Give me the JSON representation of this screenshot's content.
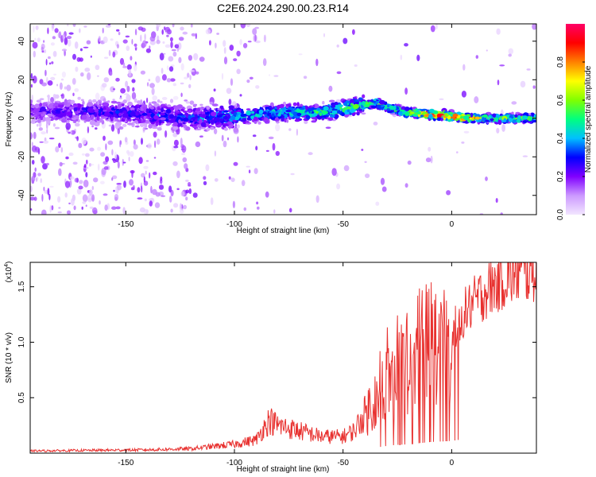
{
  "figure": {
    "title": "C2E6.2024.290.00.23.R14"
  },
  "chart_data": [
    {
      "type": "heatmap",
      "xlabel": "Height of straight line (km)",
      "ylabel": "Frequency (Hz)",
      "xlim": [
        -194,
        39
      ],
      "ylim": [
        -50,
        49
      ],
      "xticks": [
        -150,
        -100,
        -50,
        0
      ],
      "yticks": [
        -40,
        -20,
        0,
        20,
        40
      ],
      "colorbar": {
        "label": "Normalized spectral amplitude",
        "range": [
          0,
          1
        ],
        "ticks": [
          "0.0",
          "0.2",
          "0.4",
          "0.6",
          "0.8"
        ],
        "colors": [
          "#f2e6ff",
          "#cc99ff",
          "#8000ff",
          "#0000ff",
          "#00c0ff",
          "#00ff80",
          "#80ff00",
          "#ffff00",
          "#ff8000",
          "#ff0000",
          "#ff0066"
        ]
      },
      "ridge": {
        "x": [
          -194,
          -150,
          -120,
          -100,
          -80,
          -60,
          -45,
          -35,
          -28,
          -20,
          -10,
          0,
          10,
          20,
          30,
          39
        ],
        "frequency": [
          4,
          3,
          0,
          1,
          3,
          3,
          6,
          8,
          5,
          3,
          2,
          1,
          0,
          0,
          0,
          0
        ],
        "amplitude": [
          0.25,
          0.3,
          0.35,
          0.45,
          0.5,
          0.55,
          0.6,
          0.65,
          0.55,
          0.75,
          0.9,
          0.95,
          0.8,
          0.6,
          0.6,
          0.55
        ]
      }
    },
    {
      "type": "line",
      "xlabel": "Height of straight line (km)",
      "ylabel": "SNR (10 * v/v)",
      "yscale_label": "(x10",
      "yscale_exponent": "4",
      "yscale_suffix": ")",
      "xlim": [
        -194,
        39
      ],
      "ylim": [
        0,
        1.72
      ],
      "xticks": [
        -150,
        -100,
        -50,
        0
      ],
      "yticks": [
        "0.5",
        "1.0",
        "1.5"
      ],
      "series": [
        {
          "color": "#e8312f",
          "envelope": {
            "x": [
              -194,
              -140,
              -120,
              -100,
              -90,
              -84,
              -80,
              -70,
              -60,
              -50,
              -45,
              -40,
              -35,
              -30,
              -25,
              -20,
              -15,
              -10,
              -5,
              0,
              5,
              10,
              15,
              20,
              25,
              30,
              39
            ],
            "y": [
              0.02,
              0.03,
              0.04,
              0.08,
              0.12,
              0.3,
              0.25,
              0.2,
              0.15,
              0.15,
              0.2,
              0.35,
              0.5,
              0.65,
              0.75,
              0.8,
              0.9,
              1.0,
              1.05,
              1.1,
              1.25,
              1.35,
              1.45,
              1.52,
              1.58,
              1.62,
              1.65
            ]
          }
        }
      ]
    }
  ]
}
